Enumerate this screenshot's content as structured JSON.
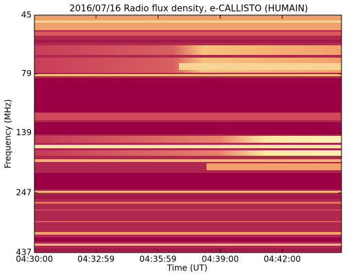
{
  "chart_data": {
    "type": "spectrogram",
    "title": "2016/07/16  Radio flux density, e-CALLISTO (HUMAIN)",
    "x_label": "Time (UT)",
    "y_label": "Frequency (MHz)",
    "xlim": [
      16200,
      17092
    ],
    "xticks": [
      {
        "value": 16200,
        "label": "04:30:00"
      },
      {
        "value": 16379,
        "label": "04:32:59"
      },
      {
        "value": 16559,
        "label": "04:35:59"
      },
      {
        "value": 16740,
        "label": "04:39:00"
      },
      {
        "value": 16920,
        "label": "04:42:00"
      }
    ],
    "ylim": [
      45,
      437
    ],
    "yticks": [
      45,
      79,
      139,
      247,
      437
    ],
    "log_y": true,
    "y_inverted": true
  }
}
